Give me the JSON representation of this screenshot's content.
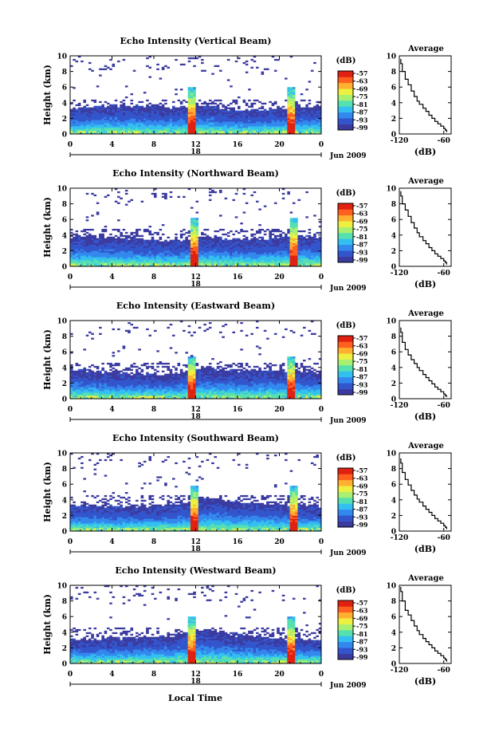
{
  "figure": {
    "xlabel": "Local Time",
    "date_label": "Jun 2009",
    "day_label": "18",
    "colorbar_unit": "(dB)",
    "colorbar_ticks": [
      "-57",
      "-63",
      "-69",
      "-75",
      "-81",
      "-87",
      "-93",
      "-99"
    ],
    "colormap": [
      "#3a3aa0",
      "#3355cc",
      "#3388ee",
      "#33c0f0",
      "#55e0b0",
      "#aaf070",
      "#eef040",
      "#ffb030",
      "#ff6020",
      "#e02010"
    ]
  },
  "chart_data": [
    {
      "type": "heatmap",
      "title": "Echo Intensity (Vertical Beam)",
      "ylabel": "Height (km)",
      "xlim": [
        0,
        24
      ],
      "ylim": [
        0,
        10
      ],
      "xticks": [
        "0",
        "4",
        "8",
        "12",
        "16",
        "20",
        "0"
      ],
      "yticks": [
        "0",
        "2",
        "4",
        "6",
        "8",
        "10"
      ],
      "features": {
        "cloud_top_km": 3.3,
        "spike_hours": [
          11.7,
          21.2
        ],
        "spike_top_km": 6
      },
      "profile": {
        "title": "Average",
        "xlabel": "(dB)",
        "xticks": [
          "-120",
          "-60"
        ],
        "yticks": [
          "0",
          "2",
          "4",
          "6",
          "8",
          "10"
        ],
        "xlim": [
          -120,
          -50
        ],
        "ylim": [
          0,
          10
        ],
        "x": [
          -118,
          -116,
          -112,
          -108,
          -104,
          -100,
          -96,
          -93,
          -88,
          -84,
          -80,
          -76,
          -72,
          -68,
          -64,
          -60,
          -58,
          -56
        ],
        "y": [
          9.0,
          8.0,
          7.0,
          6.3,
          5.5,
          4.8,
          4.2,
          3.8,
          3.3,
          2.9,
          2.4,
          2.0,
          1.6,
          1.3,
          1.0,
          0.7,
          0.5,
          0.3
        ]
      }
    },
    {
      "type": "heatmap",
      "title": "Echo Intensity (Northward Beam)",
      "ylabel": "Height (km)",
      "xlim": [
        0,
        24
      ],
      "ylim": [
        0,
        10
      ],
      "xticks": [
        "0",
        "4",
        "8",
        "12",
        "16",
        "20",
        "0"
      ],
      "yticks": [
        "0",
        "2",
        "4",
        "6",
        "8",
        "10"
      ],
      "features": {
        "cloud_top_km": 3.5,
        "spike_hours": [
          11.8,
          21.3
        ],
        "spike_top_km": 6.3
      },
      "profile": {
        "title": "Average",
        "xlabel": "(dB)",
        "xticks": [
          "-120",
          "-60"
        ],
        "yticks": [
          "0",
          "2",
          "4",
          "6",
          "8",
          "10"
        ],
        "xlim": [
          -120,
          -50
        ],
        "ylim": [
          0,
          10
        ],
        "x": [
          -118,
          -116,
          -112,
          -108,
          -104,
          -100,
          -96,
          -93,
          -88,
          -84,
          -80,
          -76,
          -72,
          -68,
          -64,
          -60,
          -58,
          -56
        ],
        "y": [
          9.0,
          8.0,
          7.2,
          6.4,
          5.6,
          4.9,
          4.3,
          3.8,
          3.3,
          2.9,
          2.4,
          2.0,
          1.6,
          1.3,
          1.0,
          0.7,
          0.5,
          0.3
        ]
      }
    },
    {
      "type": "heatmap",
      "title": "Echo Intensity (Eastward Beam)",
      "ylabel": "Height (km)",
      "xlim": [
        0,
        24
      ],
      "ylim": [
        0,
        10
      ],
      "xticks": [
        "0",
        "4",
        "8",
        "12",
        "16",
        "20",
        "0"
      ],
      "yticks": [
        "0",
        "2",
        "4",
        "6",
        "8",
        "10"
      ],
      "features": {
        "cloud_top_km": 3.4,
        "spike_hours": [
          11.7,
          21.2
        ],
        "spike_top_km": 5.5
      },
      "profile": {
        "title": "Average",
        "xlabel": "(dB)",
        "xticks": [
          "-120",
          "-60"
        ],
        "yticks": [
          "0",
          "2",
          "4",
          "6",
          "8",
          "10"
        ],
        "xlim": [
          -120,
          -50
        ],
        "ylim": [
          0,
          10
        ],
        "x": [
          -118,
          -116,
          -112,
          -108,
          -104,
          -100,
          -96,
          -93,
          -88,
          -84,
          -80,
          -76,
          -72,
          -68,
          -64,
          -60,
          -58,
          -56
        ],
        "y": [
          8.5,
          7.2,
          6.3,
          5.6,
          5.0,
          4.5,
          4.0,
          3.6,
          3.1,
          2.7,
          2.3,
          1.9,
          1.5,
          1.2,
          0.9,
          0.6,
          0.4,
          0.3
        ]
      }
    },
    {
      "type": "heatmap",
      "title": "Echo Intensity (Southward Beam)",
      "ylabel": "Height (km)",
      "xlim": [
        0,
        24
      ],
      "ylim": [
        0,
        10
      ],
      "xticks": [
        "0",
        "4",
        "8",
        "12",
        "16",
        "20",
        "0"
      ],
      "yticks": [
        "0",
        "2",
        "4",
        "6",
        "8",
        "10"
      ],
      "features": {
        "cloud_top_km": 3.4,
        "spike_hours": [
          11.8,
          21.3
        ],
        "spike_top_km": 5.8
      },
      "profile": {
        "title": "Average",
        "xlabel": "(dB)",
        "xticks": [
          "-120",
          "-60"
        ],
        "yticks": [
          "0",
          "2",
          "4",
          "6",
          "8",
          "10"
        ],
        "xlim": [
          -120,
          -50
        ],
        "ylim": [
          0,
          10
        ],
        "x": [
          -118,
          -116,
          -112,
          -108,
          -104,
          -100,
          -96,
          -93,
          -88,
          -84,
          -80,
          -76,
          -72,
          -68,
          -64,
          -60,
          -58,
          -56
        ],
        "y": [
          8.7,
          7.5,
          6.6,
          5.9,
          5.2,
          4.6,
          4.1,
          3.7,
          3.2,
          2.8,
          2.4,
          2.0,
          1.6,
          1.3,
          1.0,
          0.7,
          0.5,
          0.3
        ]
      }
    },
    {
      "type": "heatmap",
      "title": "Echo Intensity (Westward Beam)",
      "ylabel": "Height (km)",
      "xlim": [
        0,
        24
      ],
      "ylim": [
        0,
        10
      ],
      "xticks": [
        "0",
        "4",
        "8",
        "12",
        "16",
        "20",
        "0"
      ],
      "yticks": [
        "0",
        "2",
        "4",
        "6",
        "8",
        "10"
      ],
      "features": {
        "cloud_top_km": 3.4,
        "spike_hours": [
          11.7,
          21.2
        ],
        "spike_top_km": 6
      },
      "profile": {
        "title": "Average",
        "xlabel": "(dB)",
        "xticks": [
          "-120",
          "-60"
        ],
        "yticks": [
          "0",
          "2",
          "4",
          "6",
          "8",
          "10"
        ],
        "xlim": [
          -120,
          -50
        ],
        "ylim": [
          0,
          10
        ],
        "x": [
          -118,
          -116,
          -112,
          -108,
          -104,
          -100,
          -96,
          -93,
          -88,
          -84,
          -80,
          -76,
          -72,
          -68,
          -64,
          -60,
          -58,
          -56
        ],
        "y": [
          9.2,
          8.0,
          6.8,
          6.2,
          5.5,
          4.8,
          4.2,
          3.7,
          3.2,
          2.8,
          2.4,
          2.0,
          1.6,
          1.3,
          1.0,
          0.7,
          0.5,
          0.3
        ]
      }
    }
  ]
}
